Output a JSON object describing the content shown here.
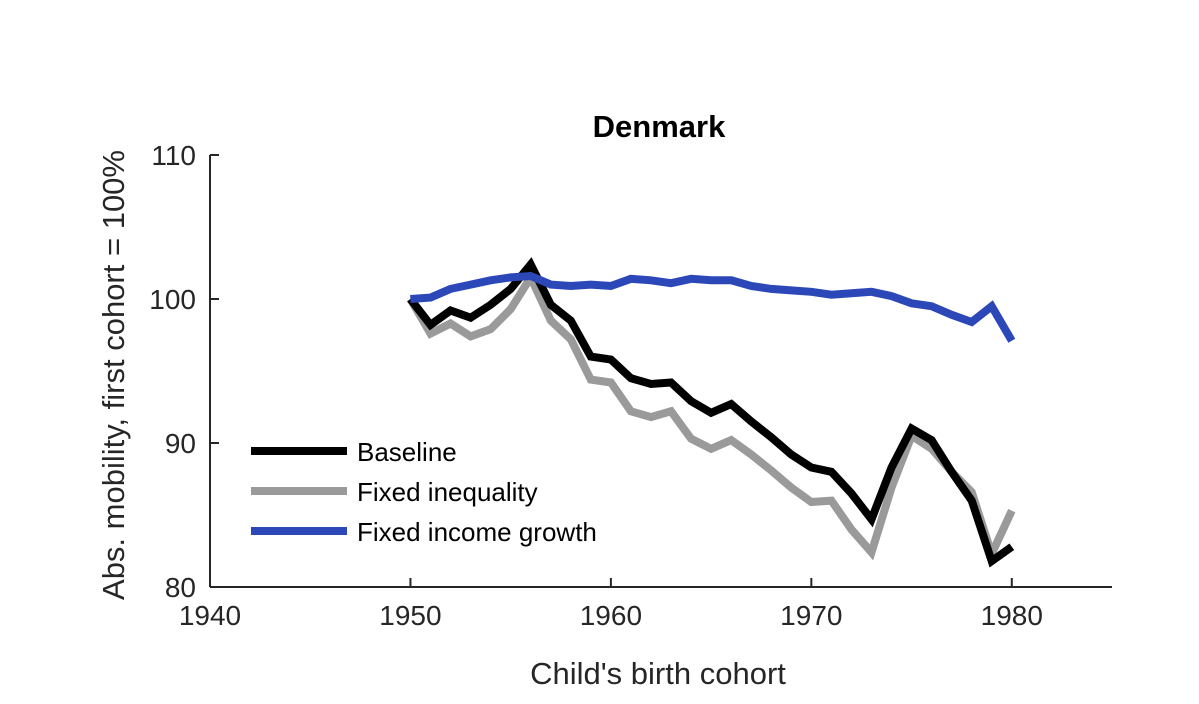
{
  "chart_data": {
    "type": "line",
    "title": "Denmark",
    "xlabel": "Child's birth cohort",
    "ylabel": "Abs. mobility, first cohort = 100%",
    "xlim": [
      1940,
      1985
    ],
    "ylim": [
      80,
      110
    ],
    "xticks": [
      1940,
      1950,
      1960,
      1970,
      1980
    ],
    "yticks": [
      80,
      90,
      100,
      110
    ],
    "grid": false,
    "legend_position": "lower-left",
    "x": [
      1950,
      1951,
      1952,
      1953,
      1954,
      1955,
      1956,
      1957,
      1958,
      1959,
      1960,
      1961,
      1962,
      1963,
      1964,
      1965,
      1966,
      1967,
      1968,
      1969,
      1970,
      1971,
      1972,
      1973,
      1974,
      1975,
      1976,
      1977,
      1978,
      1979,
      1980
    ],
    "series": [
      {
        "name": "Baseline",
        "color": "#000000",
        "values": [
          100.0,
          98.2,
          99.2,
          98.7,
          99.6,
          100.7,
          102.4,
          99.6,
          98.5,
          96.0,
          95.8,
          94.5,
          94.1,
          94.2,
          92.9,
          92.1,
          92.7,
          91.5,
          90.4,
          89.2,
          88.3,
          88.0,
          86.5,
          84.7,
          88.3,
          91.0,
          90.2,
          88.0,
          86.0,
          81.8,
          82.8
        ]
      },
      {
        "name": "Fixed inequality",
        "color": "#9a9a9a",
        "values": [
          100.0,
          97.6,
          98.3,
          97.4,
          97.9,
          99.3,
          101.5,
          98.5,
          97.2,
          94.4,
          94.2,
          92.2,
          91.8,
          92.2,
          90.3,
          89.6,
          90.2,
          89.2,
          88.1,
          86.9,
          85.9,
          86.0,
          84.0,
          82.4,
          86.9,
          90.5,
          89.6,
          88.0,
          86.6,
          82.3,
          85.3
        ]
      },
      {
        "name": "Fixed income growth",
        "color": "#2b47b8",
        "values": [
          100.0,
          100.1,
          100.7,
          101.0,
          101.3,
          101.5,
          101.6,
          101.0,
          100.9,
          101.0,
          100.9,
          101.4,
          101.3,
          101.1,
          101.4,
          101.3,
          101.3,
          100.9,
          100.7,
          100.6,
          100.5,
          100.3,
          100.4,
          100.5,
          100.2,
          99.7,
          99.5,
          98.9,
          98.4,
          99.5,
          97.1
        ]
      }
    ]
  }
}
